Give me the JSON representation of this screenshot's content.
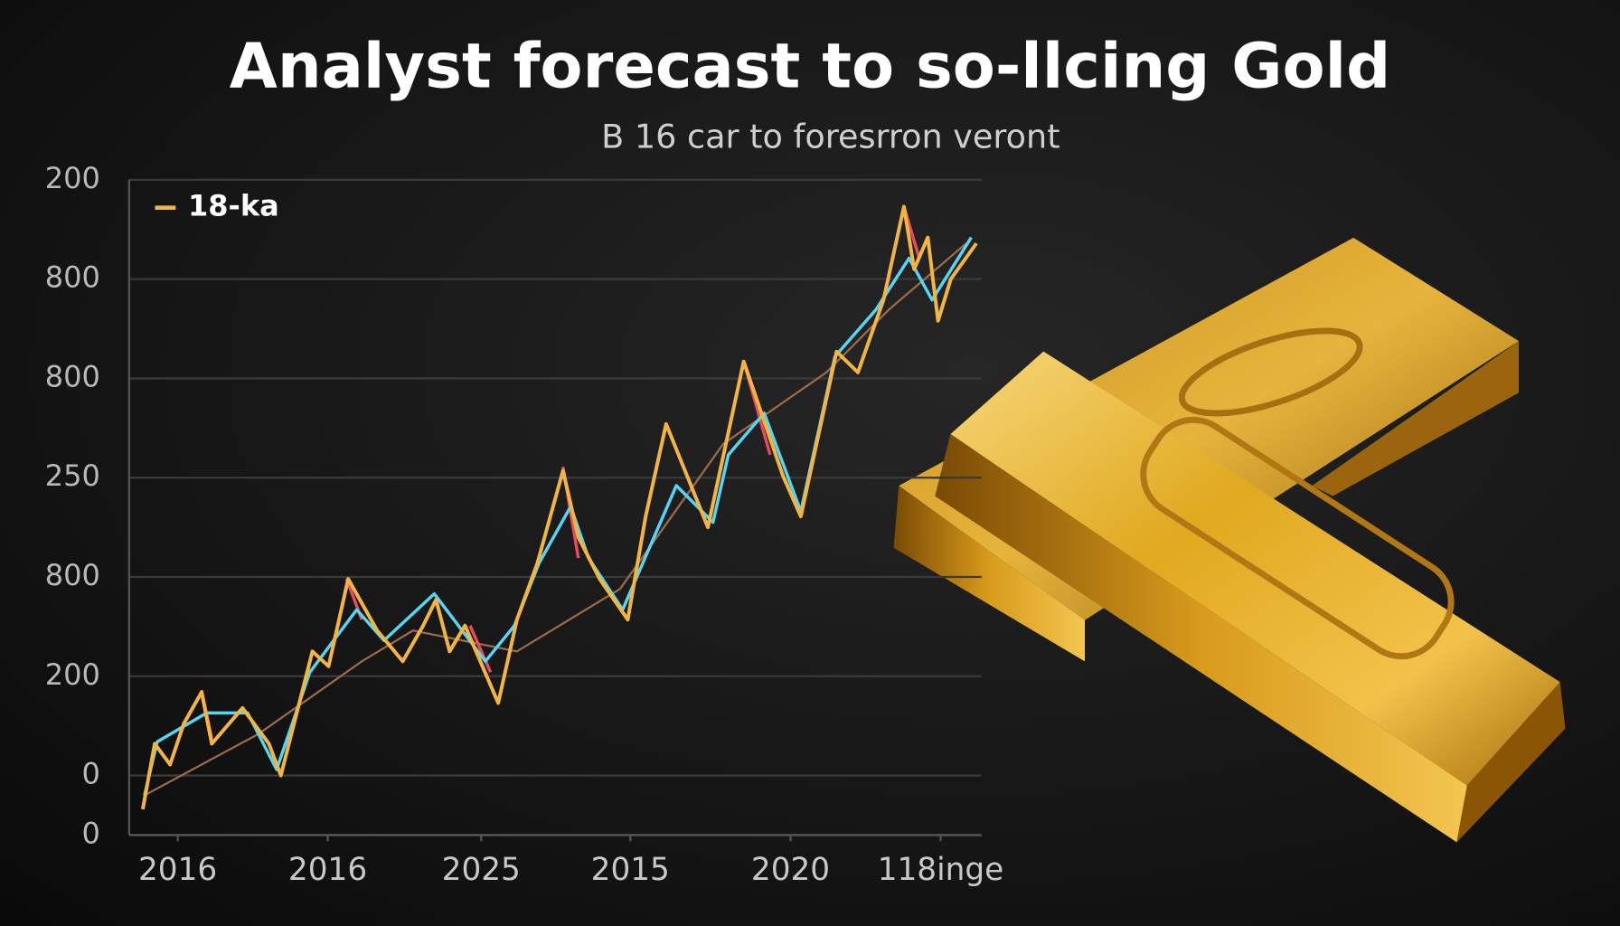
{
  "chart_data": {
    "type": "line",
    "title": "Analyst forecast to so-llcing Gold",
    "subtitle": "B 16 car to foresrron veront",
    "xlim": [
      0,
      100
    ],
    "ylim": [
      0,
      6.6
    ],
    "xticks": [
      {
        "value": 5.7,
        "label": "2016"
      },
      {
        "value": 23.3,
        "label": "2016"
      },
      {
        "value": 41.3,
        "label": "2025"
      },
      {
        "value": 58.8,
        "label": "2015"
      },
      {
        "value": 77.6,
        "label": "2020"
      },
      {
        "value": 95.2,
        "label": "118inge"
      }
    ],
    "yticks": [
      0,
      {
        "value": 0.6,
        "label": "0"
      },
      {
        "value": 1.6,
        "label": "200"
      },
      {
        "value": 2.6,
        "label": "800"
      },
      {
        "value": 3.6,
        "label": "250"
      },
      {
        "value": 4.6,
        "label": "800"
      },
      {
        "value": 5.6,
        "label": "800"
      },
      {
        "value": 6.6,
        "label": "200"
      }
    ],
    "grid": true,
    "legend": "upper left",
    "series": [
      {
        "name": "18-ka",
        "color": "#f2b544",
        "x": [
          1.6,
          3.0,
          4.8,
          6.4,
          8.5,
          9.7,
          13.3,
          16.4,
          17.8,
          21.5,
          23.4,
          25.7,
          29.1,
          32.1,
          34.5,
          36.0,
          37.6,
          39.4,
          43.3,
          45.5,
          47.9,
          50.9,
          52.7,
          55.2,
          58.5,
          60.6,
          63.0,
          67.9,
          72.1,
          76.7,
          78.8,
          83.0,
          85.5,
          88.5,
          90.9,
          92.1,
          93.7,
          94.9,
          96.4,
          99.4
        ],
        "values": [
          0.26,
          0.92,
          0.71,
          1.12,
          1.44,
          0.92,
          1.28,
          0.92,
          0.6,
          1.85,
          1.7,
          2.58,
          2.06,
          1.75,
          2.11,
          2.37,
          1.85,
          2.11,
          1.33,
          2.17,
          2.74,
          3.67,
          3.0,
          2.58,
          2.17,
          3.21,
          4.14,
          3.1,
          4.77,
          3.62,
          3.21,
          4.87,
          4.66,
          5.39,
          6.33,
          5.7,
          6.02,
          5.18,
          5.6,
          5.96
        ]
      },
      {
        "color": "#56d6f2",
        "x": [
          1.8,
          3.3,
          9.1,
          13.9,
          17.3,
          21.2,
          26.7,
          29.9,
          35.8,
          41.8,
          45.2,
          48.1,
          51.8,
          53.9,
          57.9,
          64.2,
          68.5,
          70.3,
          74.5,
          78.8,
          82.8,
          87.6,
          91.5,
          94.2,
          98.8
        ],
        "values": [
          0.4,
          0.94,
          1.23,
          1.23,
          0.66,
          1.64,
          2.27,
          1.96,
          2.43,
          1.75,
          2.11,
          2.74,
          3.31,
          2.79,
          2.27,
          3.52,
          3.15,
          3.83,
          4.25,
          3.26,
          4.82,
          5.29,
          5.81,
          5.39,
          6.02
        ]
      },
      {
        "color": "#e84a5f",
        "x": [
          8.5,
          9.7,
          null,
          25.5,
          27.3,
          null,
          40.0,
          42.4,
          null,
          50.9,
          52.7,
          null,
          58.2,
          null,
          72.1,
          75.2,
          null,
          90.9,
          92.7,
          null,
          99.4
        ],
        "values": [
          1.46,
          0.97,
          null,
          2.58,
          2.17,
          null,
          2.11,
          1.64,
          null,
          3.71,
          2.79,
          null,
          2.11,
          null,
          4.77,
          3.83,
          null,
          6.33,
          5.81,
          null,
          6.02
        ]
      },
      {
        "color": "#9a6a4a",
        "x": [
          1.8,
          15.2,
          27.3,
          33.3,
          45.5,
          57.6,
          69.7,
          81.8,
          89.1,
          98.2
        ],
        "values": [
          0.4,
          1.02,
          1.75,
          2.06,
          1.85,
          2.48,
          3.94,
          4.66,
          5.29,
          5.96
        ]
      }
    ]
  }
}
